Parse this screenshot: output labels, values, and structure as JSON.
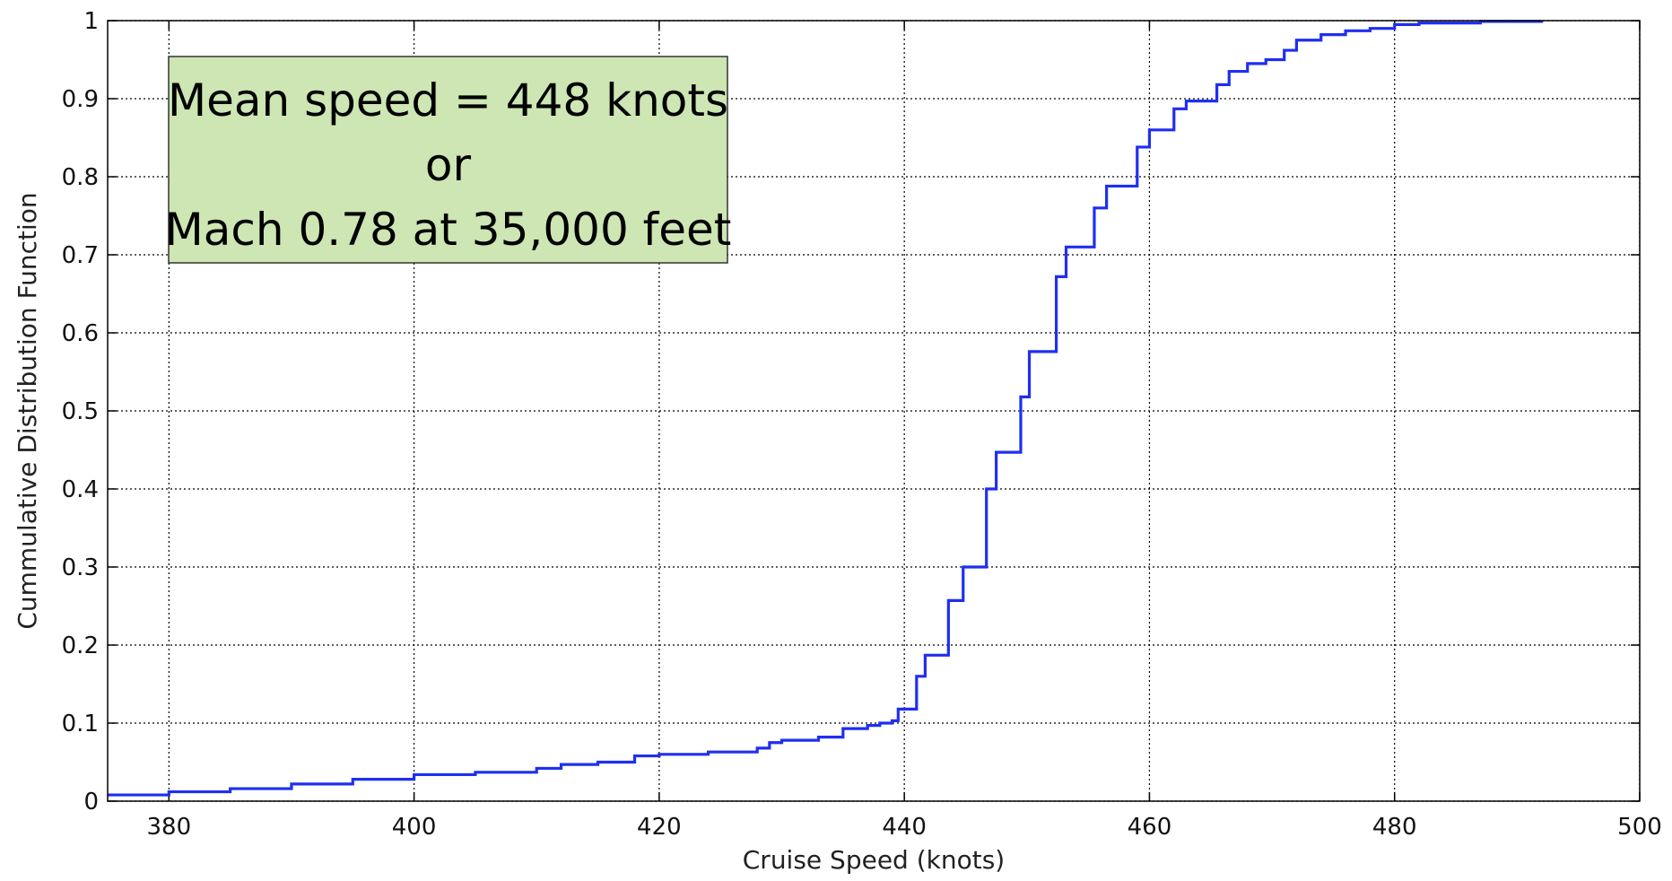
{
  "chart_data": {
    "type": "line",
    "xlabel": "Cruise Speed (knots)",
    "ylabel": "Cummulative Distribution Function",
    "annotation": [
      "Mean speed = 448 knots",
      "or",
      "Mach 0.78 at 35,000 feet"
    ],
    "drawstyle": "steps-post",
    "grid": true,
    "xlim": [
      375,
      500
    ],
    "ylim": [
      0,
      1
    ],
    "xticks": [
      380,
      400,
      420,
      440,
      460,
      480,
      500
    ],
    "yticks": [
      0,
      0.1,
      0.2,
      0.3,
      0.4,
      0.5,
      0.6,
      0.7,
      0.8,
      0.9,
      1
    ],
    "x": [
      375,
      380,
      385,
      390,
      395,
      400,
      405,
      410,
      412,
      415,
      418,
      420,
      424,
      428,
      429,
      430,
      433,
      435,
      437,
      438,
      439,
      439.5,
      441,
      441.7,
      443.6,
      444.8,
      446.7,
      447.5,
      449.5,
      450.2,
      452.4,
      453.2,
      455.5,
      456.5,
      459,
      460,
      462,
      463,
      465.5,
      466.5,
      468,
      469.5,
      471,
      472,
      474,
      476,
      478,
      480,
      482,
      487,
      492
    ],
    "series": [
      {
        "color": "#1f2ff0",
        "values": [
          0.008,
          0.012,
          0.016,
          0.022,
          0.028,
          0.034,
          0.037,
          0.042,
          0.047,
          0.05,
          0.058,
          0.06,
          0.063,
          0.068,
          0.075,
          0.078,
          0.082,
          0.093,
          0.097,
          0.1,
          0.103,
          0.118,
          0.16,
          0.187,
          0.257,
          0.3,
          0.4,
          0.447,
          0.518,
          0.576,
          0.672,
          0.71,
          0.76,
          0.788,
          0.838,
          0.86,
          0.887,
          0.897,
          0.918,
          0.935,
          0.945,
          0.95,
          0.962,
          0.975,
          0.982,
          0.987,
          0.99,
          0.995,
          0.997,
          0.999,
          1.0
        ]
      }
    ]
  }
}
